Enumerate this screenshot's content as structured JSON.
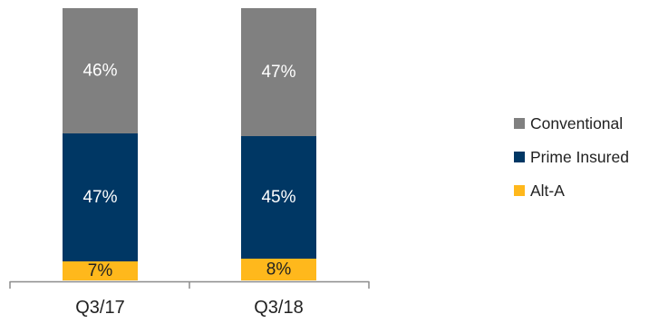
{
  "chart_data": {
    "type": "bar",
    "stacked": true,
    "categories": [
      "Q3/17",
      "Q3/18"
    ],
    "series": [
      {
        "name": "Alt-A",
        "values": [
          7,
          8
        ],
        "color": "#FFB81C",
        "label_color": "#222222"
      },
      {
        "name": "Prime Insured",
        "values": [
          47,
          45
        ],
        "color": "#003764",
        "label_color": "#ffffff"
      },
      {
        "name": "Conventional",
        "values": [
          46,
          47
        ],
        "color": "#808080",
        "label_color": "#ffffff"
      }
    ],
    "data_labels": [
      [
        "7%",
        "8%"
      ],
      [
        "47%",
        "45%"
      ],
      [
        "46%",
        "47%"
      ]
    ],
    "value_unit": "%",
    "ylim": [
      0,
      100
    ],
    "grid": false,
    "legend_position": "right",
    "legend_order": [
      "Conventional",
      "Prime Insured",
      "Alt-A"
    ]
  }
}
